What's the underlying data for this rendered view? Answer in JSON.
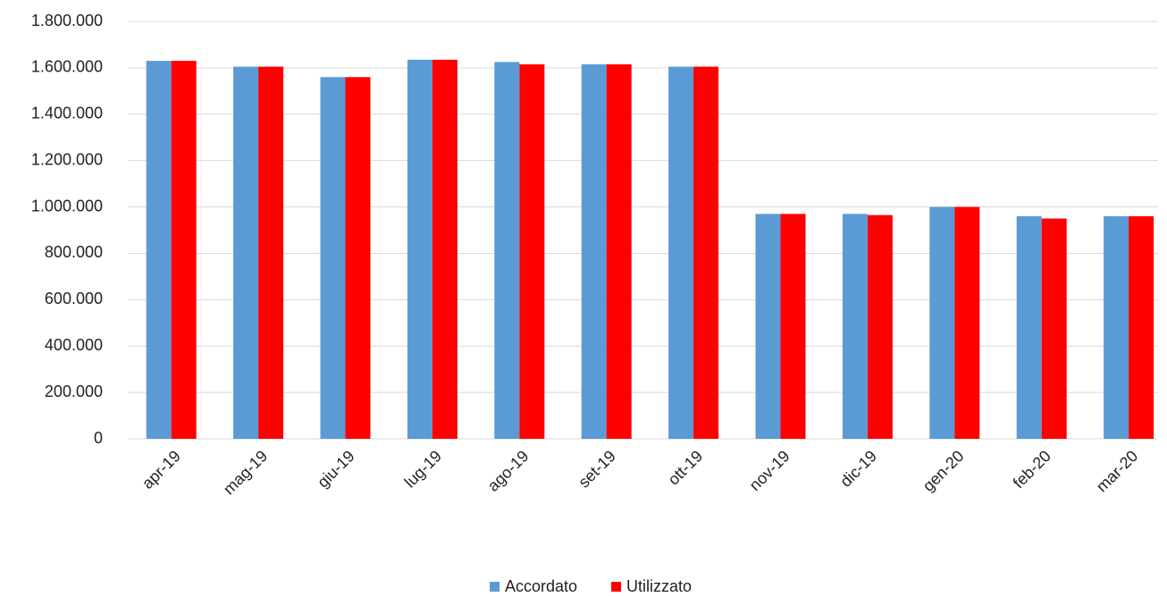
{
  "chart_data": {
    "type": "bar",
    "categories": [
      "apr-19",
      "mag-19",
      "giu-19",
      "lug-19",
      "ago-19",
      "set-19",
      "ott-19",
      "nov-19",
      "dic-19",
      "gen-20",
      "feb-20",
      "mar-20"
    ],
    "series": [
      {
        "name": "Accordato",
        "color": "#5b9bd5",
        "values": [
          1630000,
          1605000,
          1560000,
          1635000,
          1625000,
          1615000,
          1605000,
          970000,
          970000,
          1000000,
          960000,
          960000
        ]
      },
      {
        "name": "Utilizzato",
        "color": "#ff0000",
        "values": [
          1630000,
          1605000,
          1560000,
          1635000,
          1615000,
          1615000,
          1605000,
          970000,
          965000,
          1000000,
          950000,
          960000
        ]
      }
    ],
    "ylim": [
      0,
      1800000
    ],
    "yticks": [
      0,
      {
        "value": 200000,
        "label": "200.000"
      },
      {
        "value": 400000,
        "label": "400.000"
      },
      {
        "value": 600000,
        "label": "600.000"
      },
      {
        "value": 800000,
        "label": "800.000"
      },
      {
        "value": 1000000,
        "label": "1.000.000"
      },
      {
        "value": 1200000,
        "label": "1.200.000"
      },
      {
        "value": 1400000,
        "label": "1.400.000"
      },
      {
        "value": 1600000,
        "label": "1.600.000"
      },
      {
        "value": 1800000,
        "label": "1.800.000"
      }
    ],
    "grid": true,
    "legend": "bottom"
  }
}
